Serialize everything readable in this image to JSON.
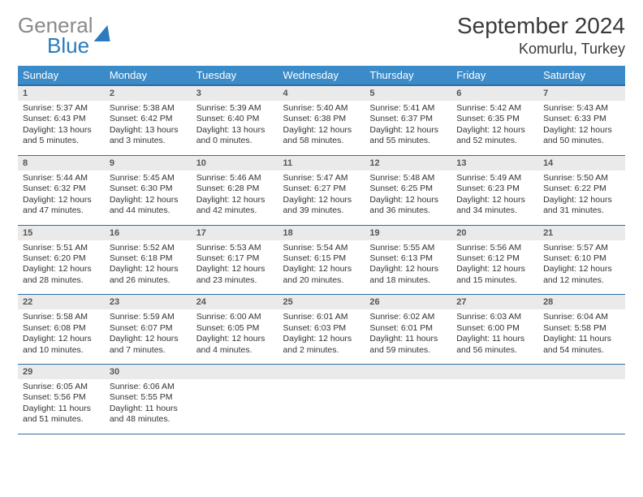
{
  "logo": {
    "part1": "General",
    "part2": "Blue"
  },
  "title": "September 2024",
  "location": "Komurlu, Turkey",
  "colors": {
    "header_bg": "#3b8bc9",
    "header_text": "#ffffff",
    "daynum_bg": "#eaeaea",
    "row_border": "#2e6da4"
  },
  "weekdays": [
    "Sunday",
    "Monday",
    "Tuesday",
    "Wednesday",
    "Thursday",
    "Friday",
    "Saturday"
  ],
  "weeks": [
    [
      {
        "num": "1",
        "sunrise": "5:37 AM",
        "sunset": "6:43 PM",
        "daylight": "13 hours and 5 minutes."
      },
      {
        "num": "2",
        "sunrise": "5:38 AM",
        "sunset": "6:42 PM",
        "daylight": "13 hours and 3 minutes."
      },
      {
        "num": "3",
        "sunrise": "5:39 AM",
        "sunset": "6:40 PM",
        "daylight": "13 hours and 0 minutes."
      },
      {
        "num": "4",
        "sunrise": "5:40 AM",
        "sunset": "6:38 PM",
        "daylight": "12 hours and 58 minutes."
      },
      {
        "num": "5",
        "sunrise": "5:41 AM",
        "sunset": "6:37 PM",
        "daylight": "12 hours and 55 minutes."
      },
      {
        "num": "6",
        "sunrise": "5:42 AM",
        "sunset": "6:35 PM",
        "daylight": "12 hours and 52 minutes."
      },
      {
        "num": "7",
        "sunrise": "5:43 AM",
        "sunset": "6:33 PM",
        "daylight": "12 hours and 50 minutes."
      }
    ],
    [
      {
        "num": "8",
        "sunrise": "5:44 AM",
        "sunset": "6:32 PM",
        "daylight": "12 hours and 47 minutes."
      },
      {
        "num": "9",
        "sunrise": "5:45 AM",
        "sunset": "6:30 PM",
        "daylight": "12 hours and 44 minutes."
      },
      {
        "num": "10",
        "sunrise": "5:46 AM",
        "sunset": "6:28 PM",
        "daylight": "12 hours and 42 minutes."
      },
      {
        "num": "11",
        "sunrise": "5:47 AM",
        "sunset": "6:27 PM",
        "daylight": "12 hours and 39 minutes."
      },
      {
        "num": "12",
        "sunrise": "5:48 AM",
        "sunset": "6:25 PM",
        "daylight": "12 hours and 36 minutes."
      },
      {
        "num": "13",
        "sunrise": "5:49 AM",
        "sunset": "6:23 PM",
        "daylight": "12 hours and 34 minutes."
      },
      {
        "num": "14",
        "sunrise": "5:50 AM",
        "sunset": "6:22 PM",
        "daylight": "12 hours and 31 minutes."
      }
    ],
    [
      {
        "num": "15",
        "sunrise": "5:51 AM",
        "sunset": "6:20 PM",
        "daylight": "12 hours and 28 minutes."
      },
      {
        "num": "16",
        "sunrise": "5:52 AM",
        "sunset": "6:18 PM",
        "daylight": "12 hours and 26 minutes."
      },
      {
        "num": "17",
        "sunrise": "5:53 AM",
        "sunset": "6:17 PM",
        "daylight": "12 hours and 23 minutes."
      },
      {
        "num": "18",
        "sunrise": "5:54 AM",
        "sunset": "6:15 PM",
        "daylight": "12 hours and 20 minutes."
      },
      {
        "num": "19",
        "sunrise": "5:55 AM",
        "sunset": "6:13 PM",
        "daylight": "12 hours and 18 minutes."
      },
      {
        "num": "20",
        "sunrise": "5:56 AM",
        "sunset": "6:12 PM",
        "daylight": "12 hours and 15 minutes."
      },
      {
        "num": "21",
        "sunrise": "5:57 AM",
        "sunset": "6:10 PM",
        "daylight": "12 hours and 12 minutes."
      }
    ],
    [
      {
        "num": "22",
        "sunrise": "5:58 AM",
        "sunset": "6:08 PM",
        "daylight": "12 hours and 10 minutes."
      },
      {
        "num": "23",
        "sunrise": "5:59 AM",
        "sunset": "6:07 PM",
        "daylight": "12 hours and 7 minutes."
      },
      {
        "num": "24",
        "sunrise": "6:00 AM",
        "sunset": "6:05 PM",
        "daylight": "12 hours and 4 minutes."
      },
      {
        "num": "25",
        "sunrise": "6:01 AM",
        "sunset": "6:03 PM",
        "daylight": "12 hours and 2 minutes."
      },
      {
        "num": "26",
        "sunrise": "6:02 AM",
        "sunset": "6:01 PM",
        "daylight": "11 hours and 59 minutes."
      },
      {
        "num": "27",
        "sunrise": "6:03 AM",
        "sunset": "6:00 PM",
        "daylight": "11 hours and 56 minutes."
      },
      {
        "num": "28",
        "sunrise": "6:04 AM",
        "sunset": "5:58 PM",
        "daylight": "11 hours and 54 minutes."
      }
    ],
    [
      {
        "num": "29",
        "sunrise": "6:05 AM",
        "sunset": "5:56 PM",
        "daylight": "11 hours and 51 minutes."
      },
      {
        "num": "30",
        "sunrise": "6:06 AM",
        "sunset": "5:55 PM",
        "daylight": "11 hours and 48 minutes."
      },
      null,
      null,
      null,
      null,
      null
    ]
  ],
  "labels": {
    "sunrise": "Sunrise:",
    "sunset": "Sunset:",
    "daylight": "Daylight:"
  }
}
